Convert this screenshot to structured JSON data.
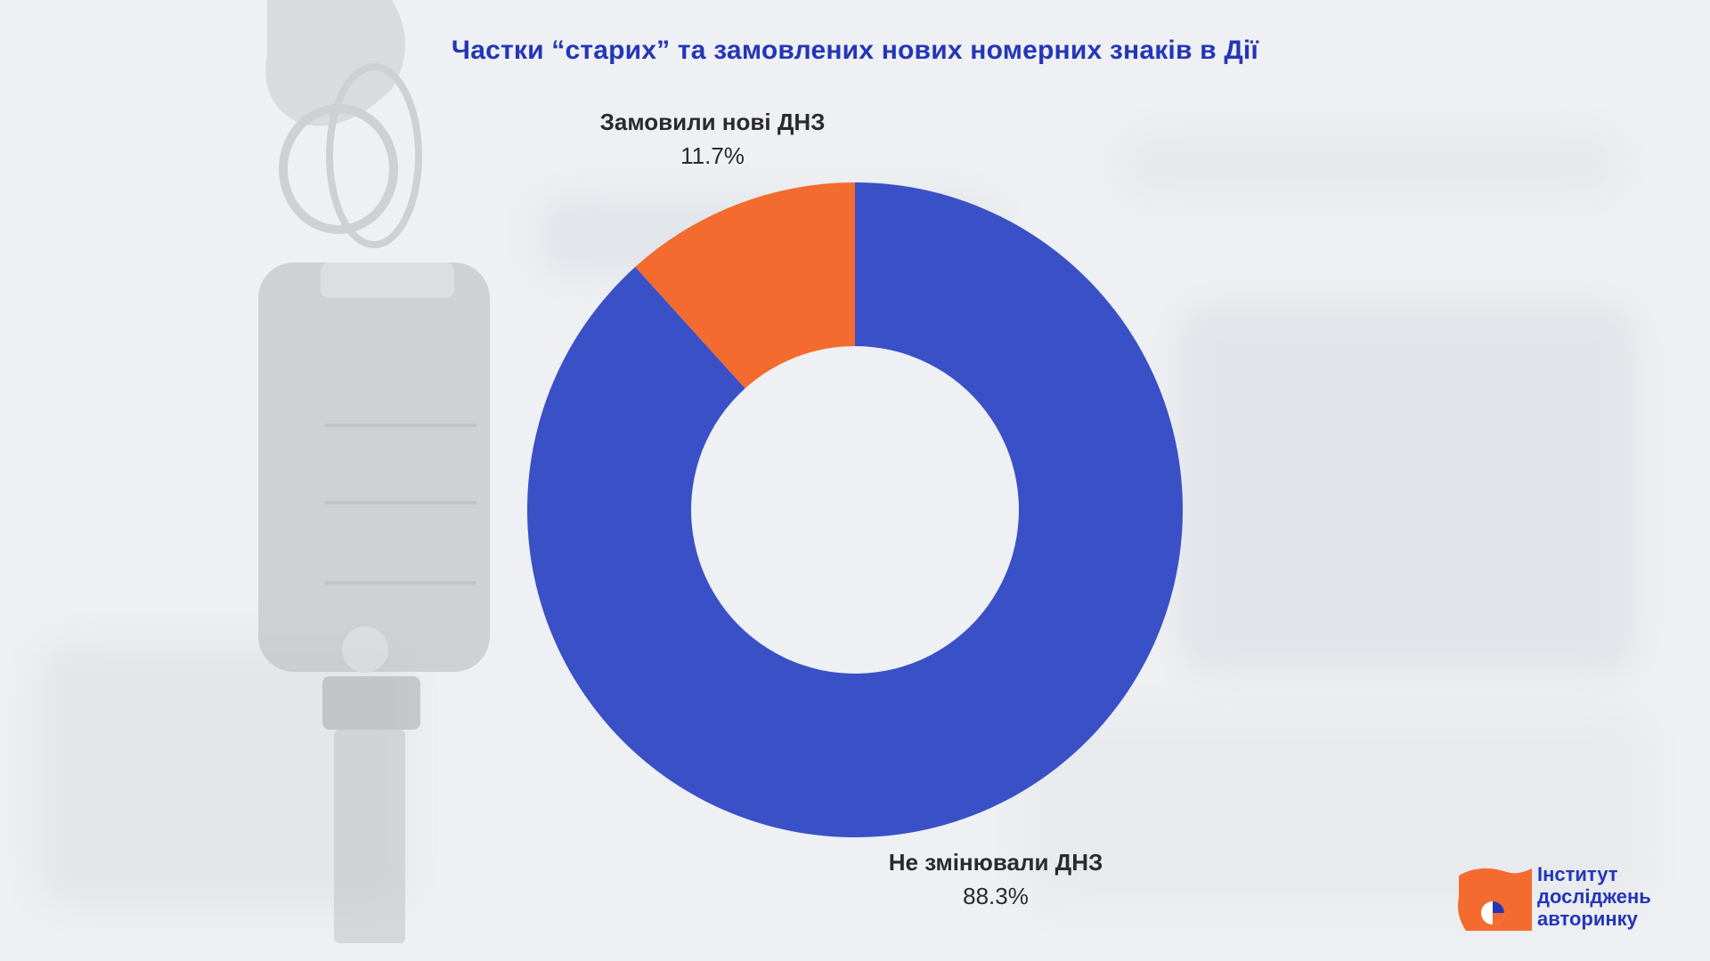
{
  "title": "Частки “старих” та замовлених нових номерних знаків в Дії",
  "chart_data": {
    "type": "pie",
    "title": "Частки “старих” та замовлених нових номерних знаків в Дії",
    "slices": [
      {
        "label": "Не змінювали ДНЗ",
        "value": 88.3,
        "display": "88.3%",
        "color": "#3a50c6"
      },
      {
        "label": "Замовили нові ДНЗ",
        "value": 11.7,
        "display": "11.7%",
        "color": "#f46b2f"
      }
    ],
    "donut": true,
    "legend": "none"
  },
  "logo": {
    "lines": [
      "Інститут",
      "досліджень",
      "авторинку"
    ],
    "accent_color": "#f46b2f",
    "text_color": "#2535b8"
  }
}
